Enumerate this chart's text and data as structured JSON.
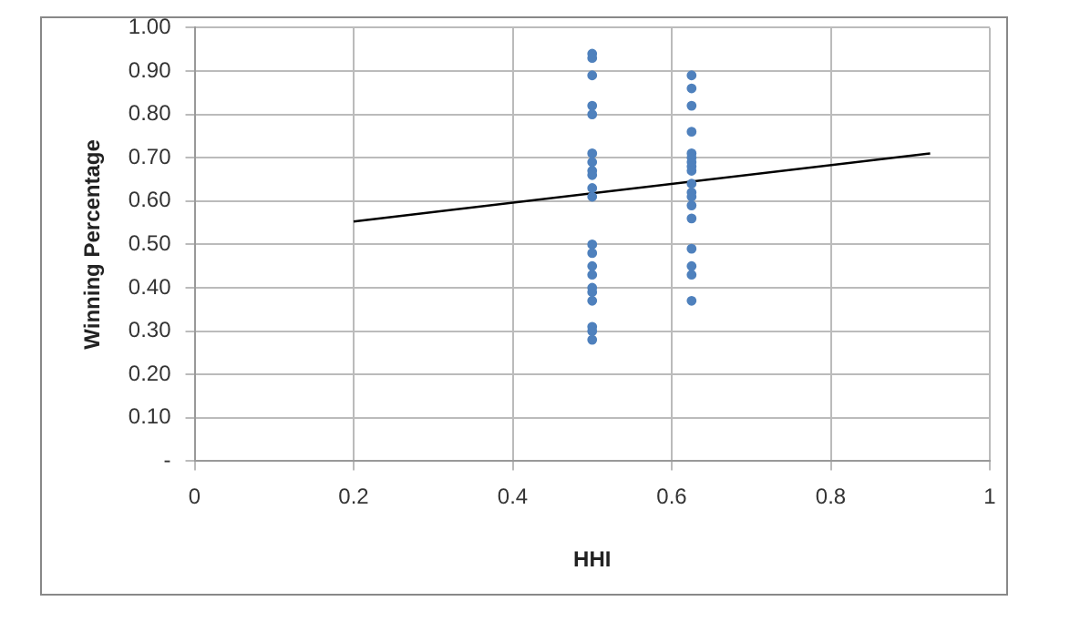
{
  "chart_data": {
    "type": "scatter",
    "xlabel": "HHI",
    "ylabel": "Winning Percentage",
    "xlim": [
      0,
      1
    ],
    "xticks": [
      0,
      0.2,
      0.4,
      0.6,
      0.8,
      1
    ],
    "ylim": [
      0,
      1
    ],
    "yticks": [
      {
        "value": 0,
        "label": "-"
      },
      {
        "value": 0.1,
        "label": "0.10"
      },
      {
        "value": 0.2,
        "label": "0.20"
      },
      {
        "value": 0.3,
        "label": "0.30"
      },
      {
        "value": 0.4,
        "label": "0.40"
      },
      {
        "value": 0.5,
        "label": "0.50"
      },
      {
        "value": 0.6,
        "label": "0.60"
      },
      {
        "value": 0.7,
        "label": "0.70"
      },
      {
        "value": 0.8,
        "label": "0.80"
      },
      {
        "value": 0.9,
        "label": "0.90"
      },
      {
        "value": 1,
        "label": "1.00"
      }
    ],
    "grid": true,
    "legend": false,
    "series": [
      {
        "marker": "circle",
        "color": "#4f81bd",
        "x": [
          0.5,
          0.5,
          0.5,
          0.5,
          0.5,
          0.5,
          0.5,
          0.5,
          0.5,
          0.5,
          0.5,
          0.5,
          0.5,
          0.5,
          0.5,
          0.5,
          0.5,
          0.5,
          0.5,
          0.5,
          0.5
        ],
        "values": [
          0.94,
          0.93,
          0.89,
          0.82,
          0.8,
          0.71,
          0.69,
          0.67,
          0.66,
          0.63,
          0.61,
          0.5,
          0.48,
          0.45,
          0.43,
          0.4,
          0.39,
          0.37,
          0.31,
          0.3,
          0.28
        ]
      },
      {
        "marker": "circle",
        "color": "#4f81bd",
        "x": [
          0.625,
          0.625,
          0.625,
          0.625,
          0.625,
          0.625,
          0.625,
          0.625,
          0.625,
          0.625,
          0.625,
          0.625,
          0.625,
          0.625,
          0.625,
          0.625,
          0.625,
          0.625
        ],
        "values": [
          0.89,
          0.86,
          0.82,
          0.76,
          0.71,
          0.7,
          0.69,
          0.68,
          0.67,
          0.64,
          0.62,
          0.61,
          0.59,
          0.56,
          0.49,
          0.45,
          0.43,
          0.37
        ]
      },
      {
        "type": "line",
        "marker": "none",
        "color": "#000000",
        "x": [
          0.2,
          0.925
        ],
        "values": [
          0.553,
          0.71
        ]
      }
    ]
  }
}
